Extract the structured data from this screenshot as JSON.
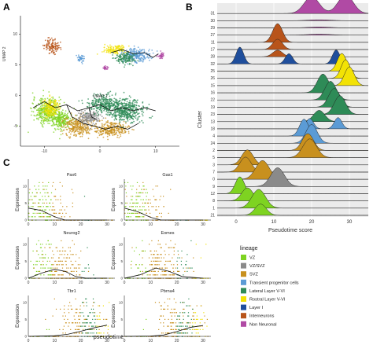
{
  "panels": {
    "a": {
      "letter": "A",
      "xlabel": "UMAP 1",
      "ylabel": "UMAP 2",
      "xticks": [
        "-10",
        "0",
        "10"
      ],
      "yticks": [
        "10",
        "5",
        "0",
        "-5"
      ]
    },
    "b": {
      "letter": "B"
    },
    "c": {
      "letter": "C"
    }
  },
  "legend": {
    "title": "lineage",
    "items": [
      {
        "label": "VZ",
        "color": "#7ed321"
      },
      {
        "label": "VZ/SVZ",
        "color": "#8a8a8a"
      },
      {
        "label": "SVZ",
        "color": "#c8901e"
      },
      {
        "label": "Transient progenitor cells",
        "color": "#5b9bd5"
      },
      {
        "label": "Lateral Layer V-VI",
        "color": "#2e8b57"
      },
      {
        "label": "Rostral Layer V-VI",
        "color": "#f2e205"
      },
      {
        "label": "Layer I",
        "color": "#1f4e9c"
      },
      {
        "label": "Interneurons",
        "color": "#b8541a"
      },
      {
        "label": "Non Neuronal",
        "color": "#b04aa4"
      }
    ]
  },
  "chart_data": [
    {
      "type": "scatter",
      "panel": "A",
      "title": "",
      "xlabel": "UMAP 1",
      "ylabel": "UMAP 2",
      "xlim": [
        -14,
        14
      ],
      "ylim": [
        -8,
        13
      ],
      "xticks": [
        -10,
        0,
        10
      ],
      "yticks": [
        -5,
        0,
        5,
        10
      ],
      "clusters": [
        {
          "lineage": "VZ",
          "center": [
            -9.5,
            -2.5
          ],
          "spread": [
            2.5,
            2.0
          ]
        },
        {
          "lineage": "VZ",
          "center": [
            -7,
            -4
          ],
          "spread": [
            2.0,
            1.5
          ]
        },
        {
          "lineage": "SVZ",
          "center": [
            -4,
            -5
          ],
          "spread": [
            2.5,
            1.5
          ]
        },
        {
          "lineage": "SVZ",
          "center": [
            2,
            -5.5
          ],
          "spread": [
            3.0,
            1.2
          ]
        },
        {
          "lineage": "VZ/SVZ",
          "center": [
            -2,
            -3.5
          ],
          "spread": [
            1.8,
            1.2
          ]
        },
        {
          "lineage": "Lateral Layer V-VI",
          "center": [
            5,
            -2.5
          ],
          "spread": [
            3.0,
            1.8
          ]
        },
        {
          "lineage": "Lateral Layer V-VI",
          "center": [
            1,
            -1.5
          ],
          "spread": [
            3.0,
            1.5
          ]
        },
        {
          "lineage": "Rostral Layer V-VI",
          "center": [
            -9,
            -2
          ],
          "spread": [
            1.5,
            1.5
          ]
        },
        {
          "lineage": "Transient progenitor cells",
          "center": [
            6.5,
            6.5
          ],
          "spread": [
            2.5,
            1.2
          ]
        },
        {
          "lineage": "Rostral Layer V-VI",
          "center": [
            2.5,
            7.5
          ],
          "spread": [
            2.0,
            0.8
          ]
        },
        {
          "lineage": "Lateral Layer V-VI",
          "center": [
            4.5,
            6.0
          ],
          "spread": [
            2.0,
            0.9
          ]
        },
        {
          "lineage": "Interneurons",
          "center": [
            -8.5,
            8.0
          ],
          "spread": [
            1.2,
            1.2
          ]
        },
        {
          "lineage": "Transient progenitor cells",
          "center": [
            -3.5,
            6.0
          ],
          "spread": [
            0.6,
            0.6
          ]
        },
        {
          "lineage": "Non Neuronal",
          "center": [
            11,
            6.5
          ],
          "spread": [
            0.5,
            0.5
          ]
        },
        {
          "lineage": "Non Neuronal",
          "center": [
            1,
            4.5
          ],
          "spread": [
            0.4,
            0.3
          ]
        }
      ]
    },
    {
      "type": "area",
      "panel": "B",
      "xlabel": "Pseudotime score",
      "ylabel": "Cluster",
      "xlim": [
        -5,
        35
      ],
      "xticks": [
        0,
        10,
        20,
        30
      ],
      "rows": [
        {
          "cluster": "31",
          "peaks": [
            {
              "x": 20,
              "sd": 2.0,
              "h": 0.9,
              "lineage": "Non Neuronal"
            },
            {
              "x": 29,
              "sd": 2.0,
              "h": 1.0,
              "lineage": "Non Neuronal"
            }
          ]
        },
        {
          "cluster": "30",
          "peaks": [
            {
              "x": 22,
              "sd": 3.0,
              "h": 0.05,
              "lineage": "Non Neuronal"
            }
          ]
        },
        {
          "cluster": "29",
          "peaks": [
            {
              "x": 22,
              "sd": 3.0,
              "h": 0.05,
              "lineage": "Non Neuronal"
            }
          ]
        },
        {
          "cluster": "27",
          "peaks": [
            {
              "x": 22,
              "sd": 3.0,
              "h": 0.05,
              "lineage": "Non Neuronal"
            }
          ]
        },
        {
          "cluster": "11",
          "peaks": [
            {
              "x": 11,
              "sd": 1.3,
              "h": 1.0,
              "lineage": "Interneurons"
            }
          ]
        },
        {
          "cluster": "17",
          "peaks": [
            {
              "x": 11,
              "sd": 1.3,
              "h": 0.55,
              "lineage": "Interneurons"
            }
          ]
        },
        {
          "cluster": "28",
          "peaks": [
            {
              "x": 11,
              "sd": 1.3,
              "h": 0.35,
              "lineage": "Interneurons"
            }
          ]
        },
        {
          "cluster": "32",
          "peaks": [
            {
              "x": 1,
              "sd": 1.0,
              "h": 0.9,
              "lineage": "Layer I"
            },
            {
              "x": 14,
              "sd": 1.0,
              "h": 0.55,
              "lineage": "Layer I"
            },
            {
              "x": 26.5,
              "sd": 1.0,
              "h": 0.75,
              "lineage": "Layer I"
            }
          ]
        },
        {
          "cluster": "25",
          "peaks": [
            {
              "x": 28,
              "sd": 1.2,
              "h": 0.95,
              "lineage": "Rostral Layer V-VI"
            }
          ]
        },
        {
          "cluster": "26",
          "peaks": [
            {
              "x": 29,
              "sd": 1.2,
              "h": 1.0,
              "lineage": "Rostral Layer V-VI"
            }
          ]
        },
        {
          "cluster": "15",
          "peaks": [
            {
              "x": 30,
              "sd": 1.3,
              "h": 1.0,
              "lineage": "Rostral Layer V-VI"
            }
          ]
        },
        {
          "cluster": "16",
          "peaks": [
            {
              "x": 23,
              "sd": 1.5,
              "h": 1.0,
              "lineage": "Lateral Layer V-VI"
            }
          ]
        },
        {
          "cluster": "22",
          "peaks": [
            {
              "x": 25,
              "sd": 1.5,
              "h": 1.0,
              "lineage": "Lateral Layer V-VI"
            }
          ]
        },
        {
          "cluster": "19",
          "peaks": [
            {
              "x": 26,
              "sd": 1.5,
              "h": 1.0,
              "lineage": "Lateral Layer V-VI"
            }
          ]
        },
        {
          "cluster": "23",
          "peaks": [
            {
              "x": 27.5,
              "sd": 1.5,
              "h": 1.0,
              "lineage": "Lateral Layer V-VI"
            }
          ]
        },
        {
          "cluster": "13",
          "peaks": [
            {
              "x": 22,
              "sd": 1.5,
              "h": 0.6,
              "lineage": "Lateral Layer V-VI"
            }
          ]
        },
        {
          "cluster": "18",
          "peaks": [
            {
              "x": 19.5,
              "sd": 1.0,
              "h": 0.55,
              "lineage": "Transient progenitor cells"
            },
            {
              "x": 27,
              "sd": 1.0,
              "h": 0.6,
              "lineage": "Transient progenitor cells"
            }
          ]
        },
        {
          "cluster": "4",
          "peaks": [
            {
              "x": 18,
              "sd": 1.2,
              "h": 0.9,
              "lineage": "Transient progenitor cells"
            }
          ]
        },
        {
          "cluster": "24",
          "peaks": [
            {
              "x": 20,
              "sd": 1.5,
              "h": 1.0,
              "lineage": "Transient progenitor cells"
            }
          ]
        },
        {
          "cluster": "2",
          "peaks": [
            {
              "x": 19,
              "sd": 1.5,
              "h": 0.9,
              "lineage": "SVZ"
            }
          ]
        },
        {
          "cluster": "5",
          "peaks": [
            {
              "x": 19.5,
              "sd": 1.8,
              "h": 1.0,
              "lineage": "SVZ"
            }
          ]
        },
        {
          "cluster": "3",
          "peaks": [
            {
              "x": 3,
              "sd": 1.5,
              "h": 0.8,
              "lineage": "SVZ"
            }
          ]
        },
        {
          "cluster": "7",
          "peaks": [
            {
              "x": 2.5,
              "sd": 1.5,
              "h": 0.8,
              "lineage": "SVZ"
            }
          ]
        },
        {
          "cluster": "0",
          "peaks": [
            {
              "x": 7,
              "sd": 1.8,
              "h": 1.0,
              "lineage": "SVZ"
            }
          ]
        },
        {
          "cluster": "9",
          "peaks": [
            {
              "x": 11,
              "sd": 1.8,
              "h": 1.0,
              "lineage": "VZ/SVZ"
            }
          ]
        },
        {
          "cluster": "12",
          "peaks": [
            {
              "x": 1,
              "sd": 1.2,
              "h": 0.9,
              "lineage": "VZ"
            }
          ]
        },
        {
          "cluster": "8",
          "peaks": [
            {
              "x": 3,
              "sd": 1.5,
              "h": 0.7,
              "lineage": "VZ"
            }
          ]
        },
        {
          "cluster": "1",
          "peaks": [
            {
              "x": 6,
              "sd": 1.8,
              "h": 1.0,
              "lineage": "VZ"
            }
          ]
        },
        {
          "cluster": "21",
          "peaks": [
            {
              "x": 6.5,
              "sd": 1.5,
              "h": 0.6,
              "lineage": "VZ"
            }
          ]
        }
      ]
    },
    {
      "type": "scatter",
      "panel": "C",
      "xlabel": "pseudotime",
      "ylabel": "Expression",
      "xlim": [
        0,
        33
      ],
      "ylim": [
        0,
        12
      ],
      "xticks": [
        0,
        10,
        20,
        30
      ],
      "yticks": [
        0,
        5,
        10
      ],
      "genes": [
        {
          "name": "Pax6",
          "trend": [
            [
              0,
              3.5
            ],
            [
              5,
              2.8
            ],
            [
              10,
              1.0
            ],
            [
              14,
              0.0
            ],
            [
              20,
              0.0
            ],
            [
              30,
              0.0
            ]
          ],
          "density": {
            "center": 5,
            "width": 9
          }
        },
        {
          "name": "Gas1",
          "trend": [
            [
              0,
              3.5
            ],
            [
              5,
              2.5
            ],
            [
              10,
              0.8
            ],
            [
              14,
              0.0
            ],
            [
              20,
              0.0
            ],
            [
              30,
              0.0
            ]
          ],
          "density": {
            "center": 5,
            "width": 9
          }
        },
        {
          "name": "Neurog2",
          "trend": [
            [
              0,
              0.0
            ],
            [
              5,
              1.5
            ],
            [
              10,
              2.6
            ],
            [
              14,
              2.0
            ],
            [
              18,
              0.5
            ],
            [
              22,
              0.0
            ],
            [
              30,
              0.0
            ]
          ],
          "density": {
            "center": 11,
            "width": 10
          }
        },
        {
          "name": "Eomes",
          "trend": [
            [
              0,
              0.0
            ],
            [
              6,
              1.0
            ],
            [
              12,
              3.0
            ],
            [
              17,
              2.0
            ],
            [
              22,
              0.5
            ],
            [
              30,
              0.0
            ]
          ],
          "density": {
            "center": 14,
            "width": 10
          }
        },
        {
          "name": "Tbr1",
          "trend": [
            [
              0,
              0.0
            ],
            [
              10,
              0.2
            ],
            [
              15,
              0.6
            ],
            [
              20,
              1.5
            ],
            [
              25,
              2.5
            ],
            [
              30,
              3.3
            ]
          ],
          "density": {
            "center": 22,
            "width": 9
          }
        },
        {
          "name": "Pbrna4",
          "trend": [
            [
              0,
              0.0
            ],
            [
              10,
              0.1
            ],
            [
              15,
              0.4
            ],
            [
              20,
              1.4
            ],
            [
              25,
              2.6
            ],
            [
              30,
              3.2
            ]
          ],
          "density": {
            "center": 22,
            "width": 9
          }
        }
      ]
    }
  ]
}
